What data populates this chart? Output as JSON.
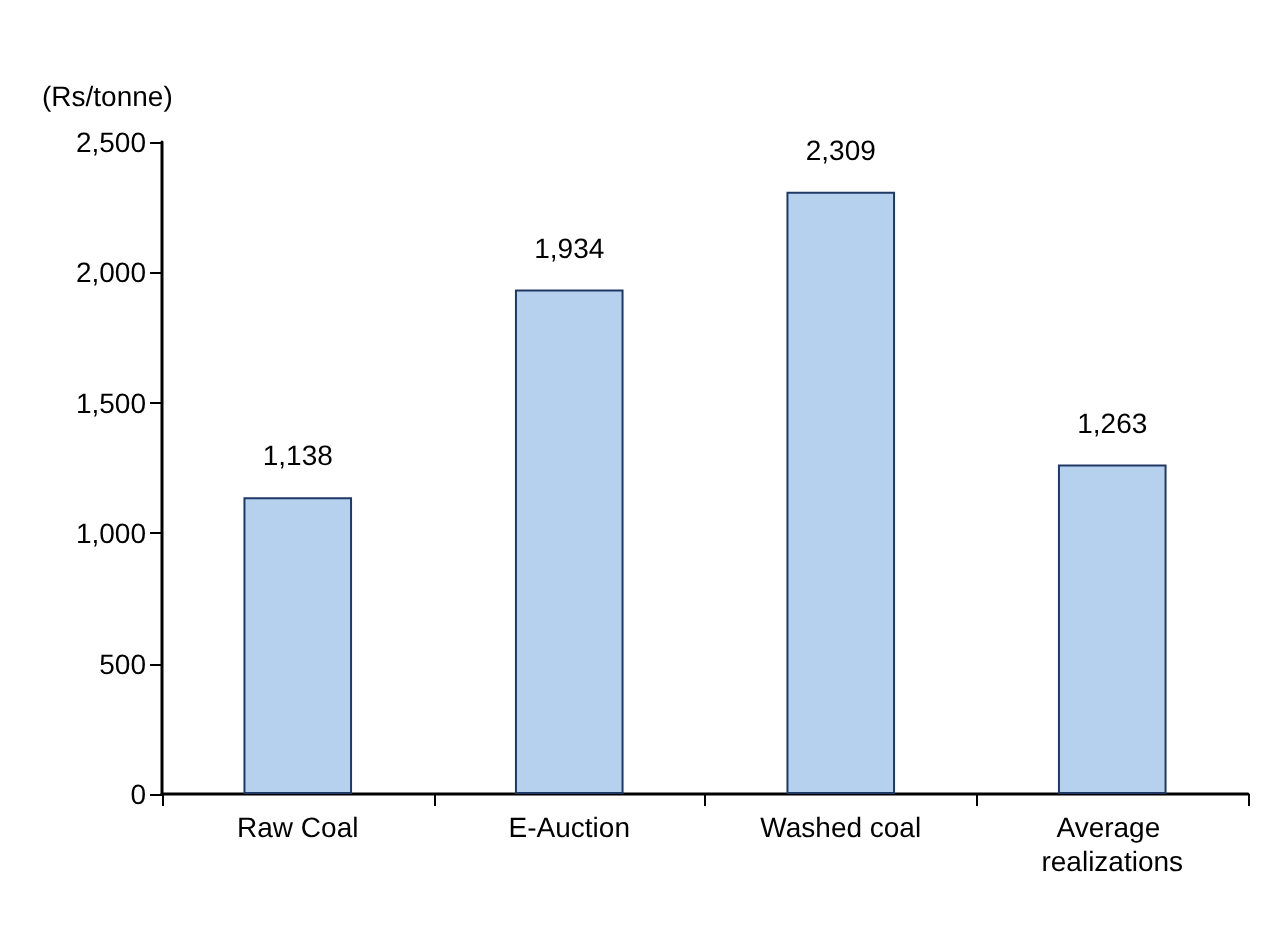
{
  "chart_data": {
    "type": "bar",
    "ylabel": "(Rs/tonne)",
    "categories": [
      "Raw Coal",
      "E-Auction",
      "Washed coal",
      "Average realizations"
    ],
    "values": [
      1138,
      1934,
      2309,
      1263
    ],
    "value_labels": [
      "1,138",
      "1,934",
      "2,309",
      "1,263"
    ],
    "color": "#b6d1ee",
    "ylim": [
      0,
      2500
    ],
    "yticks": [
      0,
      500,
      {
        "value": 1000,
        "label": "1,000"
      },
      {
        "value": 1500,
        "label": "1,500"
      },
      {
        "value": 2000,
        "label": "2,000"
      },
      {
        "value": 2500,
        "label": "2,500"
      }
    ],
    "grid": false
  }
}
